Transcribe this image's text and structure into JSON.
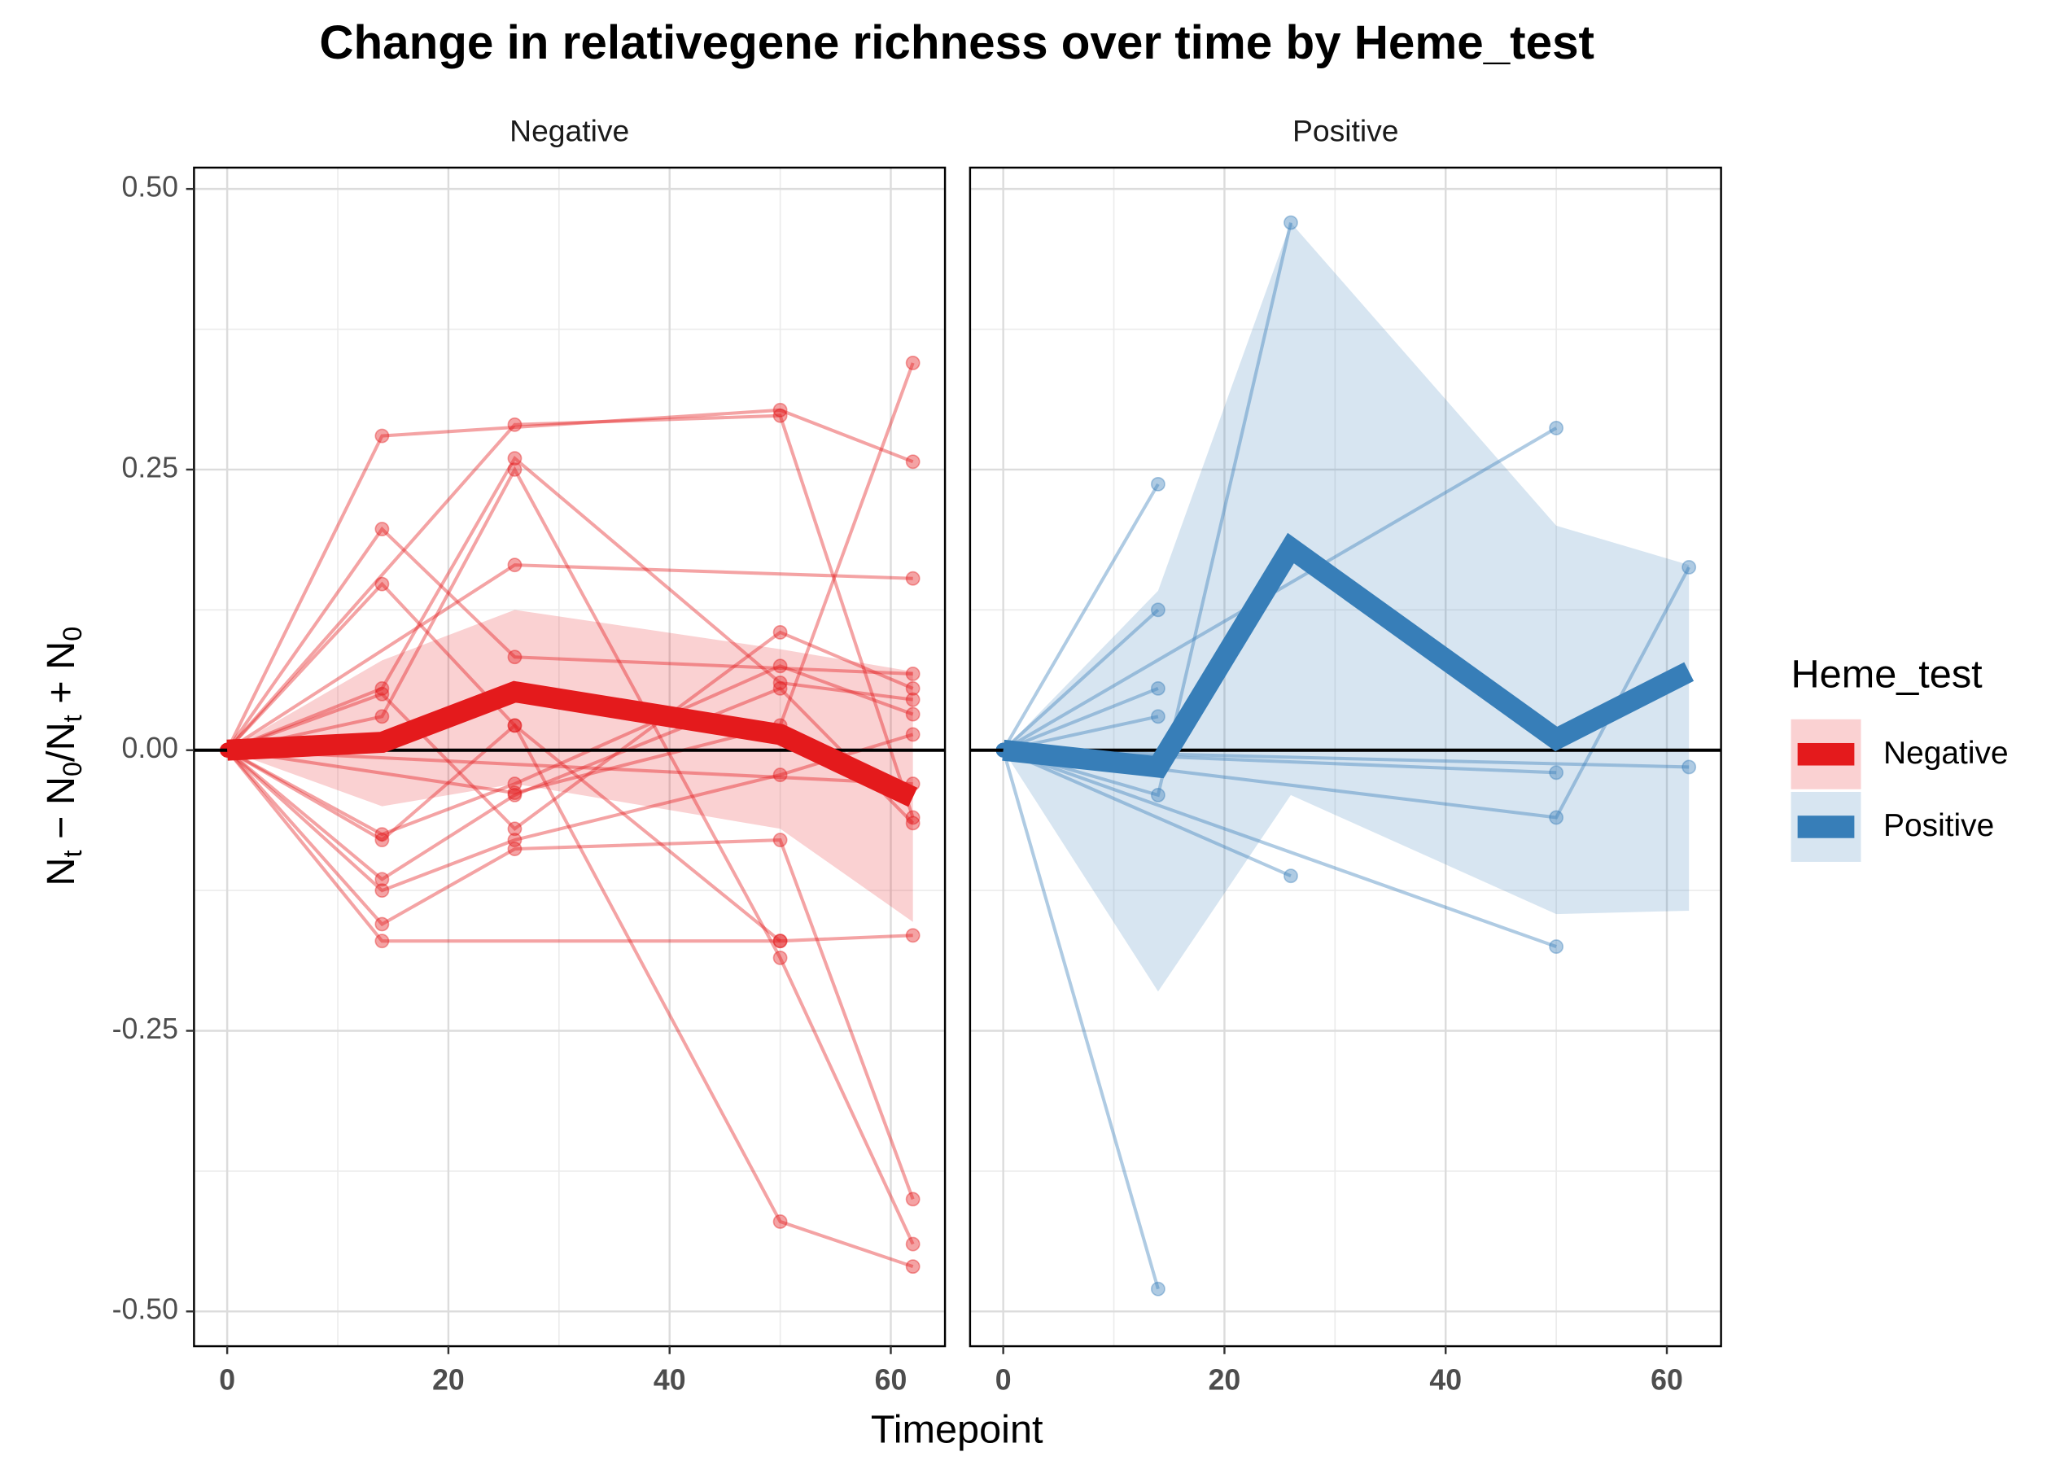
{
  "chart_data": {
    "type": "line",
    "title": "Change in relativegene richness over time by Heme_test",
    "x_label": "Timepoint",
    "y_label": [
      "N",
      "t",
      " − N",
      "0",
      "/N",
      "t",
      " + N",
      "0"
    ],
    "legend_title": "Heme_test",
    "xlim": [
      -3,
      64.9
    ],
    "xticks": [
      0,
      20,
      40,
      60
    ],
    "x_minor_ticks": [
      10,
      30,
      50
    ],
    "ylim": [
      -0.531,
      0.519
    ],
    "yticks": [
      {
        "value": -0.5,
        "label": "-0.50"
      },
      {
        "value": -0.25,
        "label": "-0.25"
      },
      {
        "value": 0,
        "label": "0.00"
      },
      {
        "value": 0.25,
        "label": "0.25"
      },
      {
        "value": 0.5,
        "label": "0.50"
      }
    ],
    "y_minor_ticks": [
      -0.375,
      -0.125,
      0.125,
      0.375
    ],
    "hline": 0,
    "grid": true,
    "panels": [
      {
        "name": "Negative",
        "color": "#e41a1c",
        "mean": {
          "x": [
            0,
            14,
            26,
            50,
            62
          ],
          "values": [
            0,
            0.007,
            0.052,
            0.014,
            -0.042
          ]
        },
        "ribbon": {
          "x": [
            0,
            14,
            26,
            50,
            62
          ],
          "lower": [
            0,
            -0.05,
            -0.03,
            -0.07,
            -0.153
          ],
          "upper": [
            0,
            0.08,
            0.125,
            0.09,
            0.07
          ]
        },
        "subjects": [
          {
            "x": [
              0,
              14,
              50,
              62
            ],
            "values": [
              0,
              0.28,
              0.303,
              0.257
            ]
          },
          {
            "x": [
              0,
              26,
              50,
              62
            ],
            "values": [
              0,
              0.29,
              0.298,
              -0.06
            ]
          },
          {
            "x": [
              0,
              14,
              26,
              62
            ],
            "values": [
              0,
              0.197,
              0.083,
              0.068
            ]
          },
          {
            "x": [
              0,
              14,
              26,
              50
            ],
            "values": [
              0,
              0.148,
              0.022,
              -0.17
            ]
          },
          {
            "x": [
              0,
              26,
              62
            ],
            "values": [
              0,
              0.165,
              0.153
            ]
          },
          {
            "x": [
              0,
              14,
              26,
              50,
              62
            ],
            "values": [
              0,
              0.055,
              0.26,
              0.06,
              0.045
            ]
          },
          {
            "x": [
              0,
              14,
              26,
              50,
              62
            ],
            "values": [
              0,
              0.05,
              -0.07,
              0.105,
              0.055
            ]
          },
          {
            "x": [
              0,
              14,
              26,
              50,
              62
            ],
            "values": [
              0,
              0.03,
              0.25,
              -0.185,
              -0.44
            ]
          },
          {
            "x": [
              0,
              14,
              26,
              50,
              62
            ],
            "values": [
              0,
              -0.075,
              -0.03,
              0.075,
              0.032
            ]
          },
          {
            "x": [
              0,
              14,
              26,
              50,
              62
            ],
            "values": [
              0,
              -0.08,
              0.022,
              -0.42,
              -0.46
            ]
          },
          {
            "x": [
              0,
              14,
              26,
              50,
              62
            ],
            "values": [
              0,
              -0.115,
              -0.04,
              0.055,
              -0.065
            ]
          },
          {
            "x": [
              0,
              14,
              26,
              50,
              62
            ],
            "values": [
              0,
              -0.125,
              -0.08,
              -0.022,
              0.014
            ]
          },
          {
            "x": [
              0,
              14,
              26,
              50,
              62
            ],
            "values": [
              0,
              -0.155,
              -0.088,
              -0.08,
              -0.4
            ]
          },
          {
            "x": [
              0,
              14,
              50,
              62
            ],
            "values": [
              0,
              -0.17,
              -0.17,
              -0.165
            ]
          },
          {
            "x": [
              0,
              26,
              50,
              62
            ],
            "values": [
              0,
              -0.038,
              0.022,
              0.345
            ]
          },
          {
            "x": [
              0,
              62
            ],
            "values": [
              0,
              -0.03
            ]
          }
        ]
      },
      {
        "name": "Positive",
        "color": "#377eb8",
        "mean": {
          "x": [
            0,
            14,
            26,
            50,
            62
          ],
          "values": [
            0,
            -0.015,
            0.18,
            0.01,
            0.07
          ]
        },
        "ribbon": {
          "x": [
            0,
            14,
            26,
            50,
            62
          ],
          "lower": [
            0,
            -0.215,
            -0.04,
            -0.146,
            -0.143
          ],
          "upper": [
            0,
            0.142,
            0.47,
            0.2,
            0.165
          ]
        },
        "subjects": [
          {
            "x": [
              0,
              14
            ],
            "values": [
              0,
              0.237
            ]
          },
          {
            "x": [
              0,
              14,
              26
            ],
            "values": [
              0,
              -0.04,
              0.47
            ]
          },
          {
            "x": [
              0,
              14
            ],
            "values": [
              0,
              0.125
            ]
          },
          {
            "x": [
              0,
              50
            ],
            "values": [
              0,
              0.287
            ]
          },
          {
            "x": [
              0,
              14
            ],
            "values": [
              0,
              0.055
            ]
          },
          {
            "x": [
              0,
              14
            ],
            "values": [
              0,
              0.03
            ]
          },
          {
            "x": [
              0,
              26
            ],
            "values": [
              0,
              -0.112
            ]
          },
          {
            "x": [
              0,
              50
            ],
            "values": [
              0,
              -0.02
            ]
          },
          {
            "x": [
              0,
              50,
              62
            ],
            "values": [
              0,
              -0.06,
              0.163
            ]
          },
          {
            "x": [
              0,
              62
            ],
            "values": [
              0,
              -0.015
            ]
          },
          {
            "x": [
              0,
              14
            ],
            "values": [
              0,
              -0.48
            ]
          },
          {
            "x": [
              0,
              50
            ],
            "values": [
              0,
              -0.175
            ]
          }
        ]
      }
    ]
  }
}
